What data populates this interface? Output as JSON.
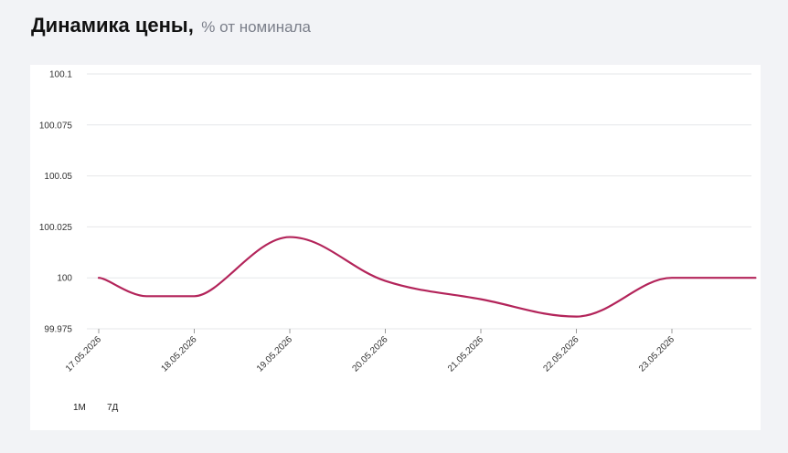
{
  "header": {
    "title": "Динамика цены,",
    "subtitle": "% от номинала"
  },
  "period_buttons": {
    "m1": "1М",
    "d7": "7Д"
  },
  "colors": {
    "line": "#b3245a",
    "grid": "#e6e7ea",
    "background": "#f2f3f6",
    "card": "#ffffff"
  },
  "chart_data": {
    "type": "line",
    "title": "Динамика цены",
    "ylabel": "% от номинала",
    "ylim": [
      99.975,
      100.1
    ],
    "yticks": [
      "100.1",
      "100.075",
      "100.05",
      "100.025",
      "100",
      "99.975"
    ],
    "categories": [
      "17.05.2026",
      "18.05.2026",
      "19.05.2026",
      "20.05.2026",
      "21.05.2026",
      "22.05.2026",
      "23.05.2026"
    ],
    "series": [
      {
        "points": [
          [
            "17.05.2026",
            100.0
          ],
          [
            "17.05.2026 12:00",
            99.991
          ],
          [
            "18.05.2026",
            99.991
          ],
          [
            "19.05.2026",
            100.02
          ],
          [
            "20.05.2026",
            99.9985
          ],
          [
            "21.05.2026",
            99.9895
          ],
          [
            "22.05.2026",
            99.981
          ],
          [
            "23.05.2026",
            100.0
          ],
          [
            "23.05.2026 21:00",
            100.0
          ]
        ]
      }
    ],
    "grid": true,
    "legend": "none"
  }
}
